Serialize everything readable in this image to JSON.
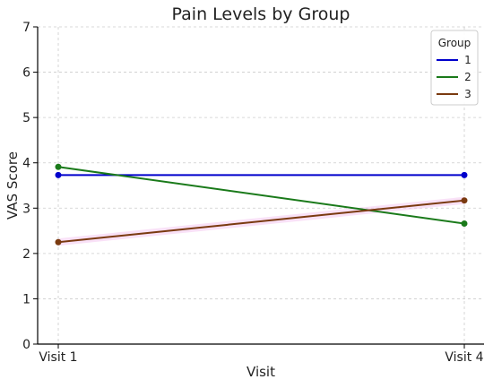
{
  "chart_data": {
    "type": "line",
    "title": "Pain Levels by Group",
    "xlabel": "Visit",
    "ylabel": "VAS Score",
    "categories": [
      "Visit 1",
      "Visit 4"
    ],
    "ylim": [
      0,
      7
    ],
    "yticks": [
      0,
      1,
      2,
      3,
      4,
      5,
      6,
      7
    ],
    "grid": true,
    "legend": {
      "title": "Group",
      "placement": "top-right"
    },
    "series": [
      {
        "name": "1",
        "values": [
          3.73,
          3.73
        ],
        "color": "#0000cc"
      },
      {
        "name": "2",
        "values": [
          3.91,
          2.66
        ],
        "color": "#1a7a1a"
      },
      {
        "name": "3",
        "values": [
          2.25,
          3.17
        ],
        "color": "#7a3a10"
      }
    ],
    "band_color": "#f4c8f0"
  }
}
